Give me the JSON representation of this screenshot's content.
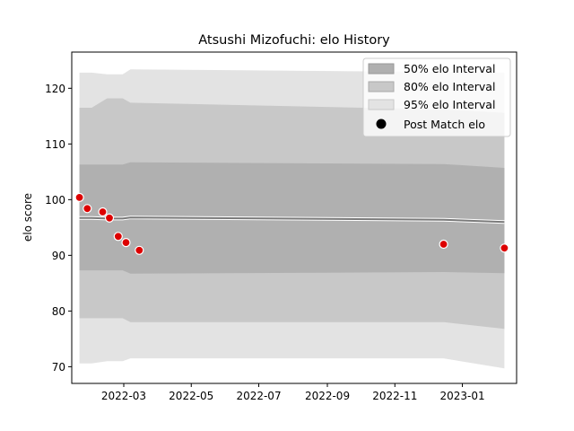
{
  "chart_data": {
    "type": "line",
    "title": "Atsushi Mizofuchi: elo History",
    "xlabel": "",
    "ylabel": "elo score",
    "ylim": [
      67,
      126.5
    ],
    "xlim": [
      "2022-01-13",
      "2023-02-19"
    ],
    "yticks": [
      70,
      80,
      90,
      100,
      110,
      120
    ],
    "xticks": [
      "2022-03",
      "2022-05",
      "2022-07",
      "2022-09",
      "2022-11",
      "2023-01"
    ],
    "grid": false,
    "legend_position": "top-right",
    "legend": [
      "50% elo Interval",
      "80% elo Interval",
      "95% elo Interval",
      "Post Match elo"
    ],
    "colors": {
      "band50": "#b0b0b0",
      "band80": "#c8c8c8",
      "band95": "#e3e3e3",
      "mean_line": "#7a7a7a",
      "point_fill": "#dd0000",
      "point_edge": "#ffffff"
    },
    "bands": {
      "dates": [
        "2022-01-20",
        "2022-01-31",
        "2022-02-14",
        "2022-02-28",
        "2022-03-07",
        "2022-12-15",
        "2023-02-08"
      ],
      "mean": [
        96.7,
        96.7,
        96.6,
        96.6,
        96.8,
        96.4,
        96.0
      ],
      "p50": {
        "upper": [
          106.3,
          106.3,
          106.3,
          106.3,
          106.7,
          106.4,
          105.7
        ],
        "lower": [
          87.3,
          87.3,
          87.3,
          87.3,
          86.7,
          87.0,
          86.8
        ]
      },
      "p80": {
        "upper": [
          116.5,
          116.5,
          118.2,
          118.2,
          117.4,
          116.2,
          115.6
        ],
        "lower": [
          78.7,
          78.7,
          78.7,
          78.7,
          78.0,
          78.0,
          76.8
        ]
      },
      "p95": {
        "upper": [
          122.8,
          122.8,
          122.5,
          122.5,
          123.4,
          122.9,
          122.8
        ],
        "lower": [
          70.6,
          70.6,
          71.0,
          71.0,
          71.5,
          71.5,
          69.7
        ]
      }
    },
    "series": [
      {
        "name": "Post Match elo",
        "x": [
          "2022-01-20",
          "2022-01-27",
          "2022-02-10",
          "2022-02-16",
          "2022-02-24",
          "2022-03-03",
          "2022-03-15",
          "2022-12-15",
          "2023-02-08"
        ],
        "y": [
          100.4,
          98.4,
          97.8,
          96.7,
          93.4,
          92.3,
          90.9,
          92.0,
          91.3
        ]
      }
    ]
  }
}
